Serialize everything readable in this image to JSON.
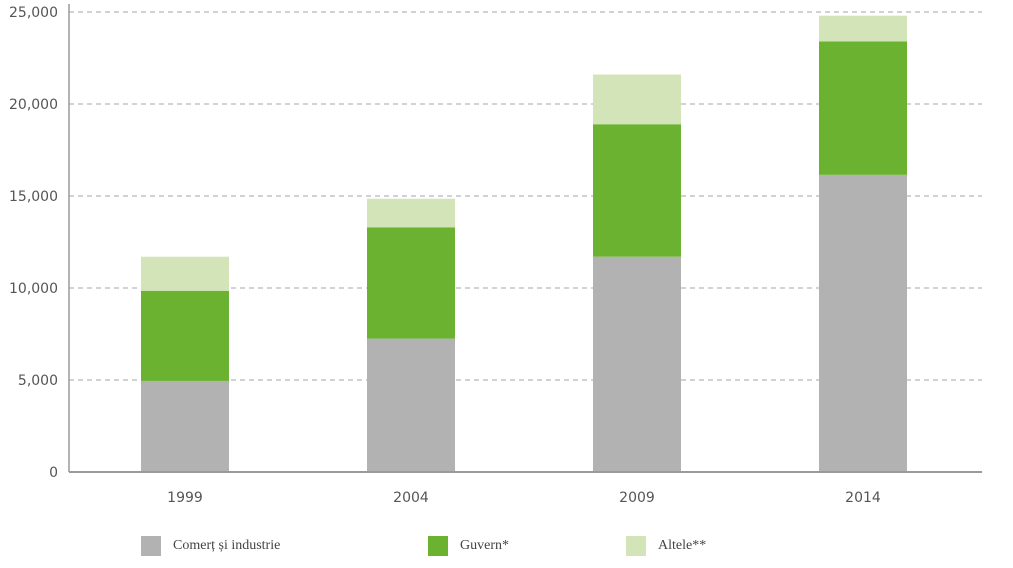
{
  "chart_data": {
    "type": "bar",
    "stacked": true,
    "categories": [
      "1999",
      "2004",
      "2009",
      "2014"
    ],
    "series": [
      {
        "name": "Comerț și industrie",
        "color": "#b2b2b2",
        "values": [
          4950,
          7250,
          11700,
          16150
        ]
      },
      {
        "name": "Guvern*",
        "color": "#6ab230",
        "values": [
          4900,
          6050,
          7200,
          7250
        ]
      },
      {
        "name": "Altele**",
        "color": "#d2e4b8",
        "values": [
          1850,
          1550,
          2700,
          1400
        ]
      }
    ],
    "ylim": [
      0,
      25000
    ],
    "yticks": [
      0,
      5000,
      10000,
      15000,
      20000,
      25000
    ],
    "ytick_labels": [
      "0",
      "5,000",
      "10,000",
      "15,000",
      "20,000",
      "25,000"
    ],
    "grid": "horizontal dashed",
    "legend": "bottom",
    "title": "",
    "xlabel": "",
    "ylabel": ""
  }
}
